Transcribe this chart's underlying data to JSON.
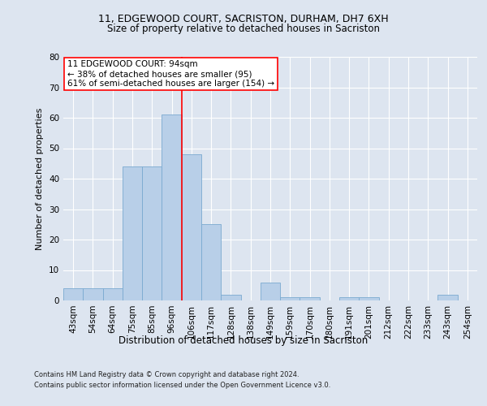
{
  "title": "11, EDGEWOOD COURT, SACRISTON, DURHAM, DH7 6XH",
  "subtitle": "Size of property relative to detached houses in Sacriston",
  "xlabel": "Distribution of detached houses by size in Sacriston",
  "ylabel": "Number of detached properties",
  "categories": [
    "43sqm",
    "54sqm",
    "64sqm",
    "75sqm",
    "85sqm",
    "96sqm",
    "106sqm",
    "117sqm",
    "128sqm",
    "138sqm",
    "149sqm",
    "159sqm",
    "170sqm",
    "180sqm",
    "191sqm",
    "201sqm",
    "212sqm",
    "222sqm",
    "233sqm",
    "243sqm",
    "254sqm"
  ],
  "values": [
    4,
    4,
    4,
    44,
    44,
    61,
    48,
    25,
    2,
    0,
    6,
    1,
    1,
    0,
    1,
    1,
    0,
    0,
    0,
    2,
    0
  ],
  "bar_color": "#b8cfe8",
  "bar_edge_color": "#7aaad0",
  "property_line_index": 5.5,
  "annotation_box_text": "11 EDGEWOOD COURT: 94sqm\n← 38% of detached houses are smaller (95)\n61% of semi-detached houses are larger (154) →",
  "background_color": "#dde5f0",
  "plot_bg_color": "#dde5f0",
  "ylim": [
    0,
    80
  ],
  "yticks": [
    0,
    10,
    20,
    30,
    40,
    50,
    60,
    70,
    80
  ],
  "title_fontsize": 9,
  "subtitle_fontsize": 8.5,
  "ylabel_fontsize": 8,
  "xlabel_fontsize": 8.5,
  "tick_fontsize": 7.5,
  "ann_fontsize": 7.5,
  "footer_line1": "Contains HM Land Registry data © Crown copyright and database right 2024.",
  "footer_line2": "Contains public sector information licensed under the Open Government Licence v3.0.",
  "footer_fontsize": 6.0
}
